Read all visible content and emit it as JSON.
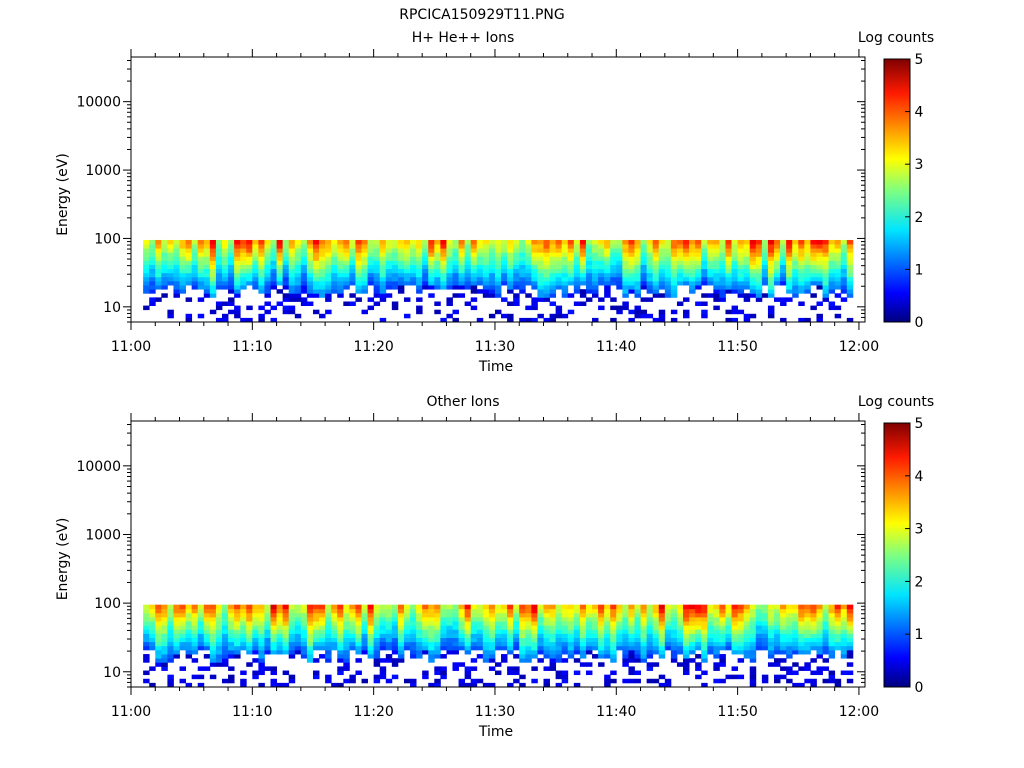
{
  "page_title": "RPCICA150929T11.PNG",
  "chart_data": [
    {
      "type": "heatmap",
      "title": "H+ He++ Ions",
      "xlabel": "Time",
      "ylabel": "Energy (eV)",
      "x_ticks": [
        "11:00",
        "11:10",
        "11:20",
        "11:30",
        "11:40",
        "11:50",
        "12:00"
      ],
      "xlim_minutes": [
        0,
        60.5
      ],
      "y_scale": "log",
      "y_ticks": [
        "10",
        "100",
        "1000",
        "10000"
      ],
      "ylim": [
        6,
        45000
      ],
      "data_time_range_minutes": [
        1,
        59.5
      ],
      "data_energy_range_eV": [
        6,
        95
      ],
      "colorbar": {
        "label": "Log counts",
        "range": [
          0,
          5
        ],
        "ticks": [
          "0",
          "1",
          "2",
          "3",
          "4",
          "5"
        ]
      }
    },
    {
      "type": "heatmap",
      "title": "Other Ions",
      "xlabel": "Time",
      "ylabel": "Energy (eV)",
      "x_ticks": [
        "11:00",
        "11:10",
        "11:20",
        "11:30",
        "11:40",
        "11:50",
        "12:00"
      ],
      "xlim_minutes": [
        0,
        60.5
      ],
      "y_scale": "log",
      "y_ticks": [
        "10",
        "100",
        "1000",
        "10000"
      ],
      "ylim": [
        6,
        45000
      ],
      "data_time_range_minutes": [
        1,
        59.5
      ],
      "data_energy_range_eV": [
        6,
        95
      ],
      "colorbar": {
        "label": "Log counts",
        "range": [
          0,
          5
        ],
        "ticks": [
          "0",
          "1",
          "2",
          "3",
          "4",
          "5"
        ]
      }
    }
  ]
}
